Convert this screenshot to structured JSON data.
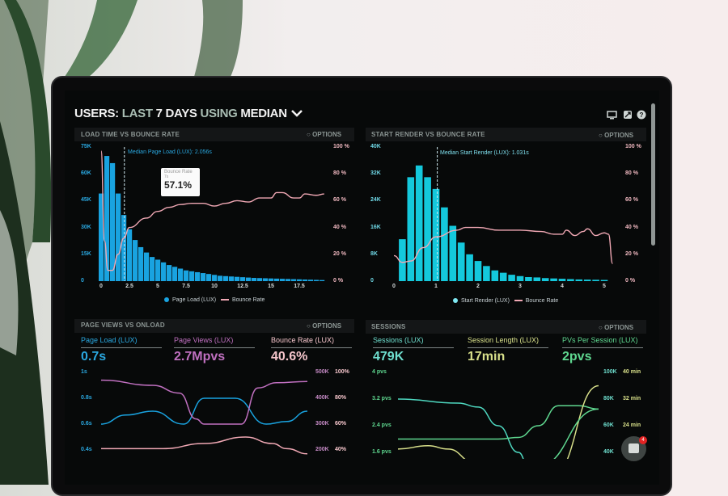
{
  "header": {
    "title_users": "USERS:",
    "title_last": "LAST",
    "title_days": "7 DAYS",
    "title_using": "USING",
    "title_median": "MEDIAN",
    "icons": [
      "monitor-icon",
      "share-icon",
      "help-icon"
    ]
  },
  "colors": {
    "blue": "#19a3e0",
    "cyan": "#14c8dc",
    "pink": "#f0a8b4",
    "purple": "#c070c0",
    "teal": "#4ed8c0",
    "yellow": "#d8e08a",
    "green": "#5fd890"
  },
  "options_label": "OPTIONS",
  "chart_data": [
    {
      "type": "bar",
      "title": "LOAD TIME VS BOUNCE RATE",
      "annotation": "Median Page Load (LUX): 2.056s",
      "median": 2.056,
      "tooltip": {
        "label": "Bounce Rate",
        "sub": "7s",
        "value": "57.1%"
      },
      "x_ticks": [
        "0",
        "2.5",
        "5",
        "7.5",
        "10",
        "12.5",
        "15",
        "17.5"
      ],
      "x_tick_values": [
        0,
        2.5,
        5,
        7.5,
        10,
        12.5,
        15,
        17.5
      ],
      "y_ticks_left": [
        "0",
        "15K",
        "30K",
        "45K",
        "60K",
        "75K"
      ],
      "ylim_left": [
        0,
        75000
      ],
      "y_ticks_right": [
        "0 %",
        "20 %",
        "40 %",
        "60 %",
        "80 %",
        "100 %"
      ],
      "ylim_right": [
        0,
        100
      ],
      "legend": [
        "Page Load (LUX)",
        "Bounce Rate"
      ],
      "bars": {
        "name": "Page Load (LUX)",
        "x": [
          0,
          0.5,
          1,
          1.5,
          2,
          2.5,
          3,
          3.5,
          4,
          4.5,
          5,
          5.5,
          6,
          6.5,
          7,
          7.5,
          8,
          8.5,
          9,
          9.5,
          10,
          10.5,
          11,
          11.5,
          12,
          12.5,
          13,
          13.5,
          14,
          14.5,
          15,
          15.5,
          16,
          16.5,
          17,
          17.5,
          18,
          18.5,
          19,
          19.5
        ],
        "values": [
          49000,
          70000,
          66000,
          49000,
          37000,
          29000,
          23000,
          19000,
          16000,
          13500,
          12000,
          10500,
          9000,
          8000,
          7000,
          6000,
          5500,
          5000,
          4500,
          4000,
          3500,
          3000,
          2800,
          2600,
          2400,
          2200,
          2000,
          1800,
          1700,
          1600,
          1500,
          1400,
          1300,
          1200,
          1100,
          1000,
          900,
          800,
          700,
          600
        ]
      },
      "line": {
        "name": "Bounce Rate",
        "points": [
          [
            0,
            97
          ],
          [
            0.3,
            30
          ],
          [
            0.6,
            8
          ],
          [
            1,
            8
          ],
          [
            1.5,
            20
          ],
          [
            2,
            32
          ],
          [
            2.5,
            40
          ],
          [
            4,
            47
          ],
          [
            5,
            52
          ],
          [
            6,
            55
          ],
          [
            7,
            57.1
          ],
          [
            8,
            58
          ],
          [
            9,
            58
          ],
          [
            10,
            56
          ],
          [
            11,
            58
          ],
          [
            12,
            60
          ],
          [
            13,
            59
          ],
          [
            14,
            62
          ],
          [
            15,
            62
          ],
          [
            15.5,
            66
          ],
          [
            16,
            66
          ],
          [
            17,
            62
          ],
          [
            17.5,
            62
          ],
          [
            18,
            65
          ],
          [
            19,
            64
          ],
          [
            19.7,
            65
          ]
        ]
      }
    },
    {
      "type": "bar",
      "title": "START RENDER VS BOUNCE RATE",
      "annotation": "Median Start Render (LUX): 1.031s",
      "median": 1.031,
      "x_ticks": [
        "0",
        "1",
        "2",
        "3",
        "4",
        "5"
      ],
      "x_tick_values": [
        0,
        1,
        2,
        3,
        4,
        5
      ],
      "y_ticks_left": [
        "0",
        "8K",
        "16K",
        "24K",
        "32K",
        "40K"
      ],
      "ylim_left": [
        0,
        40000
      ],
      "y_ticks_right": [
        "0 %",
        "20 %",
        "40 %",
        "60 %",
        "80 %",
        "100 %"
      ],
      "ylim_right": [
        0,
        100
      ],
      "legend": [
        "Start Render (LUX)",
        "Bounce Rate"
      ],
      "bars": {
        "name": "Start Render (LUX)",
        "x": [
          0.2,
          0.4,
          0.6,
          0.8,
          1.0,
          1.2,
          1.4,
          1.6,
          1.8,
          2.0,
          2.2,
          2.4,
          2.6,
          2.8,
          3.0,
          3.2,
          3.4,
          3.6,
          3.8,
          4.0,
          4.2,
          4.4,
          4.6,
          4.8,
          5.0
        ],
        "values": [
          12500,
          31000,
          34500,
          31000,
          27500,
          22000,
          16500,
          11500,
          8000,
          6000,
          4500,
          3200,
          2500,
          1900,
          1500,
          1200,
          1100,
          900,
          800,
          700,
          600,
          500,
          450,
          400,
          350
        ]
      },
      "line": {
        "name": "Bounce Rate",
        "points": [
          [
            0,
            19
          ],
          [
            0.2,
            14
          ],
          [
            0.4,
            15
          ],
          [
            0.7,
            25
          ],
          [
            1,
            33
          ],
          [
            1.5,
            38
          ],
          [
            1.7,
            40
          ],
          [
            2,
            40
          ],
          [
            2.5,
            38
          ],
          [
            3,
            38
          ],
          [
            3.5,
            37
          ],
          [
            3.8,
            35
          ],
          [
            4,
            35
          ],
          [
            4.1,
            38
          ],
          [
            4.3,
            34
          ],
          [
            4.5,
            37
          ],
          [
            4.6,
            39
          ],
          [
            4.8,
            34
          ],
          [
            5,
            36
          ],
          [
            5.1,
            35
          ],
          [
            5.2,
            13
          ]
        ]
      }
    },
    {
      "type": "line",
      "title": "PAGE VIEWS VS ONLOAD",
      "stats": [
        {
          "label": "Page Load (LUX)",
          "value": "0.7s"
        },
        {
          "label": "Page Views (LUX)",
          "value": "2.7Mpvs"
        },
        {
          "label": "Bounce Rate (LUX)",
          "value": "40.6%"
        }
      ],
      "y_ticks_left": [
        "0.4s",
        "0.6s",
        "0.8s",
        "1s"
      ],
      "ylim_left": [
        0.4,
        1.0
      ],
      "y_ticks_right_1": [
        "200K",
        "300K",
        "400K",
        "500K"
      ],
      "ylim_right_1": [
        200000,
        500000
      ],
      "y_ticks_right_2": [
        "40%",
        "60%",
        "80%",
        "100%"
      ],
      "ylim_right_2": [
        40,
        100
      ],
      "series": [
        {
          "name": "Page Load (LUX)",
          "axis": "left",
          "points": [
            [
              0,
              0.6
            ],
            [
              1.2,
              0.67
            ],
            [
              2.5,
              0.7
            ],
            [
              4,
              0.6
            ],
            [
              5,
              0.8
            ],
            [
              6.5,
              0.8
            ],
            [
              8,
              0.6
            ],
            [
              9,
              0.62
            ],
            [
              10,
              0.7
            ]
          ]
        },
        {
          "name": "Page Views (LUX)",
          "axis": "right_1",
          "points": [
            [
              0,
              470000
            ],
            [
              2.5,
              450000
            ],
            [
              3.8,
              420000
            ],
            [
              4.6,
              320000
            ],
            [
              5,
              300000
            ],
            [
              6.8,
              300000
            ],
            [
              7.6,
              440000
            ],
            [
              8.5,
              460000
            ],
            [
              10,
              465000
            ]
          ]
        },
        {
          "name": "Bounce Rate (LUX)",
          "axis": "right_2",
          "points": [
            [
              0,
              41
            ],
            [
              3,
              41
            ],
            [
              5,
              45
            ],
            [
              7,
              50
            ],
            [
              8.3,
              45
            ],
            [
              9,
              41
            ],
            [
              10,
              37
            ]
          ]
        }
      ]
    },
    {
      "type": "line",
      "title": "SESSIONS",
      "stats": [
        {
          "label": "Sessions (LUX)",
          "value": "479K"
        },
        {
          "label": "Session Length (LUX)",
          "value": "17min"
        },
        {
          "label": "PVs Per Session (LUX)",
          "value": "2pvs"
        }
      ],
      "y_ticks_left": [
        "1.6 pvs",
        "2.4 pvs",
        "3.2 pvs",
        "4 pvs"
      ],
      "ylim_left": [
        1.6,
        4.0
      ],
      "y_ticks_right_1": [
        "40K",
        "60K",
        "80K",
        "100K"
      ],
      "ylim_right_1": [
        40000,
        100000
      ],
      "y_ticks_right_2": [
        "16 min",
        "24 min",
        "32 min",
        "40 min"
      ],
      "ylim_right_2": [
        16,
        40
      ],
      "series": [
        {
          "name": "Sessions (LUX)",
          "axis": "right_1",
          "points": [
            [
              0,
              80000
            ],
            [
              3,
              77000
            ],
            [
              4,
              74000
            ],
            [
              5,
              60000
            ],
            [
              6,
              40000
            ],
            [
              6.5,
              30000
            ]
          ]
        },
        {
          "name": "PVs Per Session (LUX)",
          "axis": "left",
          "points": [
            [
              0,
              2.0
            ],
            [
              5,
              2.0
            ],
            [
              6,
              2.05
            ],
            [
              7,
              2.4
            ],
            [
              8,
              3.0
            ],
            [
              9,
              3.0
            ],
            [
              10,
              2.9
            ]
          ]
        },
        {
          "name": "Session Length (LUX)",
          "axis": "right_2",
          "points": [
            [
              0,
              17
            ],
            [
              1.5,
              18
            ],
            [
              2.5,
              17
            ],
            [
              3.8,
              13
            ]
          ]
        },
        {
          "name": "Session Length (LUX) rise",
          "axis": "right_2",
          "points": [
            [
              7.8,
              10
            ],
            [
              10,
              36
            ]
          ]
        },
        {
          "name": "PVs Per Session rise",
          "axis": "left",
          "points": [
            [
              7,
              1.2
            ],
            [
              10,
              2.9
            ]
          ]
        }
      ]
    }
  ],
  "chat": {
    "badge": "4"
  }
}
